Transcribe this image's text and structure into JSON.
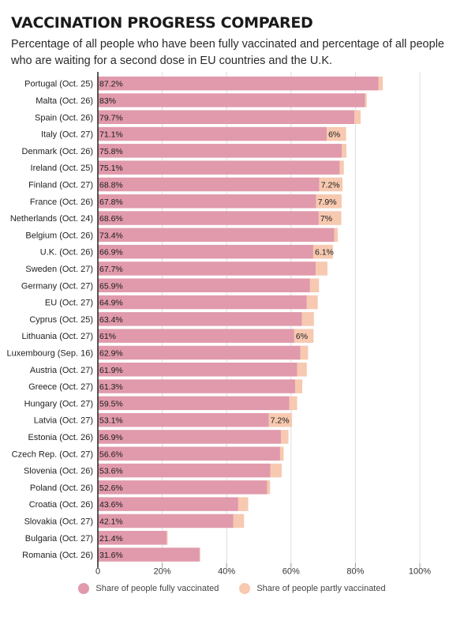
{
  "header": {
    "title": "VACCINATION PROGRESS COMPARED",
    "subtitle": "Percentage of all people who have been fully vaccinated and percentage of all people who are waiting for a second dose in EU countries and the U.K."
  },
  "colors": {
    "full": "#e09aab",
    "partial": "#f6c9b0",
    "axis": "#222222",
    "grid": "#dddddd"
  },
  "chart_data": {
    "type": "bar",
    "orientation": "horizontal",
    "stacked": true,
    "title": "VACCINATION PROGRESS COMPARED",
    "subtitle": "Percentage of all people who have been fully vaccinated and percentage of all people who are waiting for a second dose in EU countries and the U.K.",
    "xlabel": "",
    "ylabel": "",
    "xlim": [
      0,
      100
    ],
    "x_ticks": [
      "0",
      "20%",
      "40%",
      "60%",
      "80%",
      "100%"
    ],
    "x_tick_values": [
      0,
      20,
      40,
      60,
      80,
      100
    ],
    "grid": "vertical",
    "legend_position": "bottom",
    "categories": [
      "Portugal (Oct. 25)",
      "Malta (Oct. 26)",
      "Spain (Oct. 26)",
      "Italy (Oct. 27)",
      "Denmark (Oct. 26)",
      "Ireland (Oct. 25)",
      "Finland (Oct. 27)",
      "France (Oct. 26)",
      "Netherlands (Oct. 24)",
      "Belgium (Oct. 26)",
      "U.K. (Oct. 26)",
      "Sweden (Oct. 27)",
      "Germany (Oct. 27)",
      "EU (Oct. 27)",
      "Cyprus (Oct. 25)",
      "Lithuania (Oct. 27)",
      "Luxembourg (Sep. 16)",
      "Austria (Oct. 27)",
      "Greece (Oct. 27)",
      "Hungary (Oct. 27)",
      "Latvia (Oct. 27)",
      "Estonia (Oct. 26)",
      "Czech Rep. (Oct. 27)",
      "Slovenia (Oct. 26)",
      "Poland (Oct. 26)",
      "Croatia (Oct. 26)",
      "Slovakia (Oct. 27)",
      "Bulgaria (Oct. 27)",
      "Romania (Oct. 26)"
    ],
    "series": [
      {
        "name": "Share of people fully vaccinated",
        "values": [
          87.2,
          83,
          79.7,
          71.1,
          75.8,
          75.1,
          68.8,
          67.8,
          68.6,
          73.4,
          66.9,
          67.7,
          65.9,
          64.9,
          63.4,
          61,
          62.9,
          61.9,
          61.3,
          59.5,
          53.1,
          56.9,
          56.6,
          53.6,
          52.6,
          43.6,
          42.1,
          21.4,
          31.6
        ],
        "labels": [
          "87.2%",
          "83%",
          "79.7%",
          "71.1%",
          "75.8%",
          "75.1%",
          "68.8%",
          "67.8%",
          "68.6%",
          "73.4%",
          "66.9%",
          "67.7%",
          "65.9%",
          "64.9%",
          "63.4%",
          "61%",
          "62.9%",
          "61.9%",
          "61.3%",
          "59.5%",
          "53.1%",
          "56.9%",
          "56.6%",
          "53.6%",
          "52.6%",
          "43.6%",
          "42.1%",
          "21.4%",
          "31.6%"
        ]
      },
      {
        "name": "Share of people partly vaccinated",
        "values": [
          1.3,
          0.5,
          1.9,
          6,
          1.4,
          1.3,
          7.2,
          7.9,
          7,
          1.1,
          6.1,
          3.6,
          2.8,
          3.4,
          3.7,
          6,
          2.4,
          3,
          2.2,
          2.4,
          7.2,
          2.3,
          1.1,
          3.5,
          0.9,
          3.1,
          3.3,
          0.3,
          0.2
        ],
        "labels": [
          "",
          "",
          "",
          "6%",
          "",
          "",
          "7.2%",
          "7.9%",
          "7%",
          "",
          "6.1%",
          "",
          "",
          "",
          "",
          "6%",
          "",
          "",
          "",
          "",
          "7.2%",
          "",
          "",
          "",
          "",
          "",
          "",
          "",
          ""
        ]
      }
    ]
  }
}
